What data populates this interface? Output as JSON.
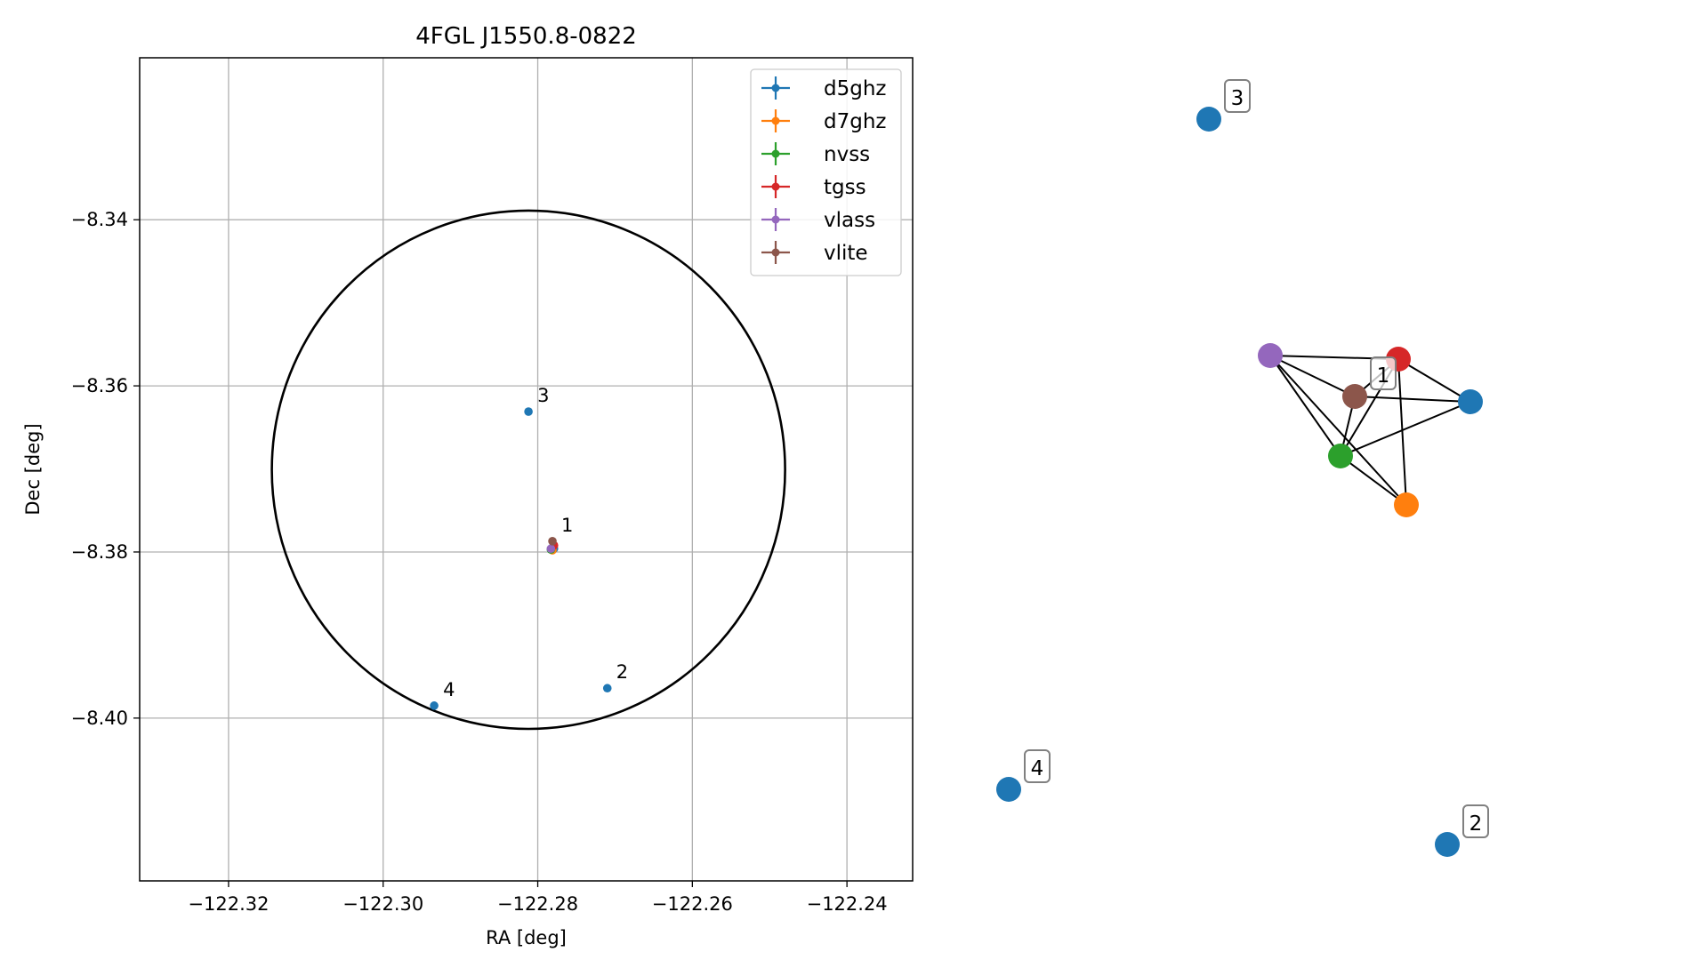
{
  "chart_data": [
    {
      "type": "scatter",
      "title": "4FGL J1550.8-0822",
      "xlabel": "RA [deg]",
      "ylabel": "Dec [deg]",
      "xlim": [
        -122.3315,
        -122.2315
      ],
      "ylim": [
        -8.4196,
        -8.3205
      ],
      "xticks": [
        -122.32,
        -122.3,
        -122.28,
        -122.26,
        -122.24
      ],
      "xtick_labels": [
        "−122.32",
        "−122.30",
        "−122.28",
        "−122.26",
        "−122.24"
      ],
      "yticks": [
        -8.34,
        -8.36,
        -8.38,
        -8.4
      ],
      "ytick_labels": [
        "−8.34",
        "−8.36",
        "−8.38",
        "−8.40"
      ],
      "grid": true,
      "legend_position": "top-right",
      "ellipse": {
        "center": [
          -122.2812,
          -8.3701
        ],
        "radius_ra": 0.0332,
        "radius_dec": 0.0312,
        "color": "#000000"
      },
      "series": [
        {
          "name": "d5ghz",
          "color": "#1f77b4",
          "points": [
            {
              "ra": -122.2779,
              "dec": -8.3796,
              "label": ""
            },
            {
              "ra": -122.271,
              "dec": -8.3964,
              "label": "2"
            },
            {
              "ra": -122.2812,
              "dec": -8.3631,
              "label": "3"
            },
            {
              "ra": -122.2934,
              "dec": -8.3985,
              "label": "4"
            }
          ]
        },
        {
          "name": "d7ghz",
          "color": "#ff7f0e",
          "points": [
            {
              "ra": -122.2781,
              "dec": -8.3798,
              "label": ""
            }
          ]
        },
        {
          "name": "nvss",
          "color": "#2ca02c",
          "points": [
            {
              "ra": -122.2783,
              "dec": -8.3797,
              "label": ""
            }
          ]
        },
        {
          "name": "tgss",
          "color": "#d62728",
          "points": [
            {
              "ra": -122.2779,
              "dec": -8.3792,
              "label": ""
            }
          ]
        },
        {
          "name": "vlass",
          "color": "#9467bd",
          "points": [
            {
              "ra": -122.2783,
              "dec": -8.3796,
              "label": ""
            }
          ]
        },
        {
          "name": "vlite",
          "color": "#8c564b",
          "points": [
            {
              "ra": -122.2781,
              "dec": -8.3787,
              "label": "1"
            }
          ]
        }
      ]
    },
    {
      "type": "network",
      "nodes": [
        {
          "id": "d5ghz-1",
          "color": "#1f77b4",
          "label": ""
        },
        {
          "id": "d7ghz",
          "color": "#ff7f0e",
          "label": ""
        },
        {
          "id": "nvss",
          "color": "#2ca02c",
          "label": ""
        },
        {
          "id": "tgss",
          "color": "#d62728",
          "label": ""
        },
        {
          "id": "vlass",
          "color": "#9467bd",
          "label": ""
        },
        {
          "id": "vlite",
          "color": "#8c564b",
          "label": "1"
        },
        {
          "id": "d5ghz-2",
          "color": "#1f77b4",
          "label": "2"
        },
        {
          "id": "d5ghz-3",
          "color": "#1f77b4",
          "label": "3"
        },
        {
          "id": "d5ghz-4",
          "color": "#1f77b4",
          "label": "4"
        }
      ],
      "edges": [
        [
          "vlass",
          "tgss"
        ],
        [
          "vlass",
          "vlite"
        ],
        [
          "vlass",
          "nvss"
        ],
        [
          "vlass",
          "d7ghz"
        ],
        [
          "tgss",
          "vlite"
        ],
        [
          "tgss",
          "nvss"
        ],
        [
          "tgss",
          "d7ghz"
        ],
        [
          "tgss",
          "d5ghz-1"
        ],
        [
          "vlite",
          "nvss"
        ],
        [
          "vlite",
          "d5ghz-1"
        ],
        [
          "nvss",
          "d7ghz"
        ],
        [
          "nvss",
          "d5ghz-1"
        ]
      ]
    }
  ]
}
